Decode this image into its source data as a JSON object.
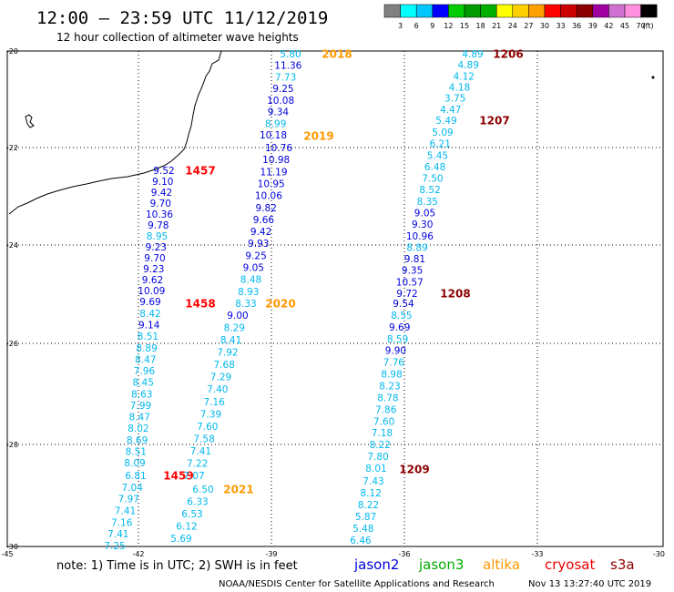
{
  "header": {
    "title": "12:00 – 23:59 UTC 11/12/2019",
    "subtitle": "12 hour collection of altimeter wave heights"
  },
  "colorbar": {
    "colors": [
      "#808080",
      "#00ffff",
      "#00c8ff",
      "#0000ff",
      "#00cc00",
      "#009900",
      "#00b000",
      "#ffff00",
      "#ffd000",
      "#ffa000",
      "#ff0000",
      "#cc0000",
      "#8b0000",
      "#a000a0",
      "#d070d0",
      "#ff90e0",
      "#000000"
    ],
    "labels": [
      "3",
      "6",
      "9",
      "12",
      "15",
      "18",
      "21",
      "24",
      "27",
      "30",
      "33",
      "36",
      "39",
      "42",
      "45",
      "70"
    ],
    "unit": "(ft)"
  },
  "axes": {
    "lat_labels": [
      "-20",
      "-22",
      "-24",
      "-26",
      "-28",
      "-30"
    ],
    "lon_labels": [
      "-45",
      "-42",
      "-39",
      "-36",
      "-33",
      "-30"
    ]
  },
  "passes": [
    {
      "time": "1457",
      "color": "#ff0000",
      "values": [
        "9.52",
        "9.10",
        "9.42",
        "9.70",
        "10.36",
        "9.78",
        "8.95",
        "9.23",
        "9.70",
        "9.23",
        "9.62",
        "10.09",
        "9.69"
      ]
    },
    {
      "time": "1458",
      "color": "#ff0000",
      "values": [
        "8.42",
        "9.14",
        "8.51",
        "8.89",
        "8.47",
        "7.96",
        "8.45",
        "8.63",
        "7.99",
        "8.47",
        "8.02",
        "8.69",
        "8.51",
        "8.09"
      ]
    },
    {
      "time": "1459",
      "color": "#ff0000",
      "values": [
        "6.81",
        "7.04",
        "7.97",
        "7.41",
        "7.16",
        "7.41",
        "7.25"
      ]
    },
    {
      "time": "2018",
      "color": "#ff9900",
      "values": [
        "5.80",
        "11.36",
        "7.73",
        "9.25",
        "10.08",
        "9.34",
        "8.99",
        "10.18"
      ]
    },
    {
      "time": "2019",
      "color": "#ff9900",
      "values": [
        "10.76",
        "10.98",
        "11.19",
        "10.95",
        "10.06",
        "9.82",
        "9.66",
        "9.42",
        "9.93",
        "9.25",
        "9.05",
        "8.48",
        "8.93",
        "8.33"
      ]
    },
    {
      "time": "2020",
      "color": "#ff9900",
      "values": [
        "9.00",
        "8.29",
        "8.41",
        "7.92",
        "7.68",
        "7.29",
        "7.40",
        "7.16",
        "7.39",
        "7.60",
        "7.58",
        "7.41",
        "7.22",
        "7.07"
      ]
    },
    {
      "time": "2021",
      "color": "#ff9900",
      "values": [
        "6.50",
        "6.33",
        "6.53",
        "6.12",
        "5.69"
      ]
    },
    {
      "time": "1206",
      "color": "#8b0000",
      "values": [
        "4.89",
        "4.89",
        "4.12",
        "4.18",
        "3.75",
        "4.47",
        "5.49"
      ]
    },
    {
      "time": "1207",
      "color": "#8b0000",
      "values": [
        "5.09",
        "6.21",
        "5.45",
        "6.48",
        "7.50",
        "8.52",
        "8.35",
        "9.05",
        "9.30",
        "10.96",
        "8.89",
        "9.81",
        "9.35",
        "10.57",
        "9.72"
      ]
    },
    {
      "time": "1208",
      "color": "#8b0000",
      "values": [
        "9.54",
        "8.55",
        "9.69",
        "8.59",
        "9.90",
        "7.76",
        "8.98",
        "8.23",
        "8.78",
        "7.86",
        "7.60",
        "7.18",
        "8.22",
        "7.80",
        "8.01"
      ]
    },
    {
      "time": "1209",
      "color": "#8b0000",
      "values": [
        "7.43",
        "8.12",
        "8.22",
        "5.87",
        "5.48",
        "6.46"
      ]
    }
  ],
  "footer": {
    "note": "note:  1) Time is in UTC;  2) SWH is in feet",
    "satellites": [
      {
        "name": "jason2",
        "color": "#0000dd"
      },
      {
        "name": "jason3",
        "color": "#00aa00"
      },
      {
        "name": "altika",
        "color": "#ff9900"
      },
      {
        "name": "cryosat",
        "color": "#ee0000"
      },
      {
        "name": "s3a",
        "color": "#8b0000"
      }
    ],
    "credit": "NOAA/NESDIS Center for Satellite Applications and Research",
    "timestamp": "Nov 13 13:27:40 UTC 2019"
  }
}
